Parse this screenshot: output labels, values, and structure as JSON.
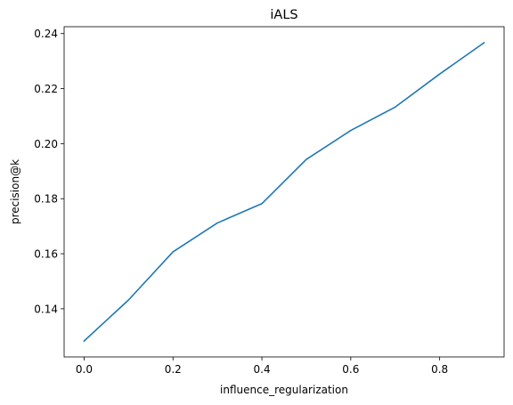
{
  "chart_data": {
    "type": "line",
    "title": "iALS",
    "xlabel": "influence_regularization",
    "ylabel": "precision@k",
    "xlim": [
      -0.045,
      0.945
    ],
    "ylim": [
      0.1225,
      0.2425
    ],
    "grid": false,
    "x_ticks": [
      0.0,
      0.2,
      0.4,
      0.6,
      0.8
    ],
    "x_tick_labels": [
      "0.0",
      "0.2",
      "0.4",
      "0.6",
      "0.8"
    ],
    "y_ticks": [
      0.14,
      0.16,
      0.18,
      0.2,
      0.22,
      0.24
    ],
    "y_tick_labels": [
      "0.14",
      "0.16",
      "0.18",
      "0.20",
      "0.22",
      "0.24"
    ],
    "series": [
      {
        "name": "precision@k",
        "color": "#1f77b4",
        "x": [
          0.0,
          0.1,
          0.2,
          0.3,
          0.4,
          0.5,
          0.6,
          0.7,
          0.8,
          0.9
        ],
        "values": [
          0.1283,
          0.1432,
          0.1607,
          0.1712,
          0.1782,
          0.1943,
          0.2048,
          0.2133,
          0.2253,
          0.2367
        ]
      }
    ]
  }
}
